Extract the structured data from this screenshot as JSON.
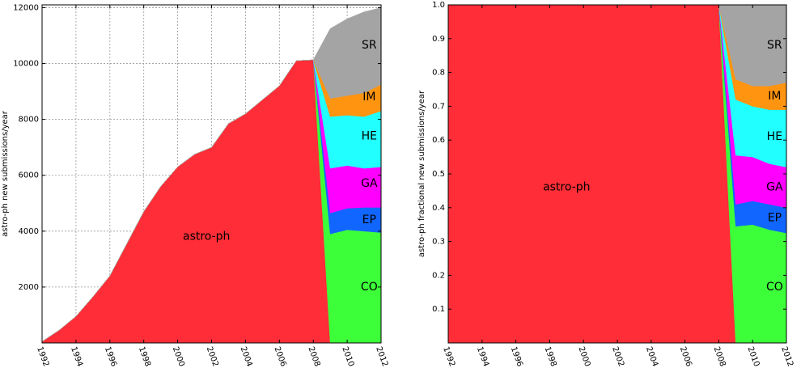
{
  "chart_data": [
    {
      "type": "area",
      "ylabel": "astro-ph new submissions/year",
      "xlim": [
        1992,
        2012
      ],
      "ylim": [
        0,
        12100
      ],
      "grid": true,
      "x_ticks": [
        "1992",
        "1994",
        "1996",
        "1998",
        "2000",
        "2002",
        "2004",
        "2006",
        "2008",
        "2010",
        "2012"
      ],
      "y_ticks": [
        {
          "value": 2000,
          "label": "2000"
        },
        {
          "value": 4000,
          "label": "4000"
        },
        {
          "value": 6000,
          "label": "6000"
        },
        {
          "value": 8000,
          "label": "8000"
        },
        {
          "value": 10000,
          "label": "10000"
        },
        {
          "value": 12000,
          "label": "12000"
        }
      ],
      "x": [
        1992,
        1993,
        1994,
        1995,
        1996,
        1997,
        1998,
        1999,
        2000,
        2001,
        2002,
        2003,
        2004,
        2005,
        2006,
        2007,
        2008,
        2009,
        2010,
        2011,
        2012
      ],
      "series": [
        {
          "name": "astro-ph",
          "color": "#ff2d37",
          "label_pos": [
            2001.7,
            3800
          ],
          "values": [
            50,
            450,
            950,
            1650,
            2400,
            3550,
            4700,
            5600,
            6300,
            6750,
            7000,
            7850,
            8200,
            8700,
            9200,
            10100,
            10130,
            0,
            0,
            0,
            0
          ]
        },
        {
          "name": "CO",
          "color": "#3cff3a",
          "label_pos": [
            2011.3,
            2000
          ],
          "values": [
            0,
            0,
            0,
            0,
            0,
            0,
            0,
            0,
            0,
            0,
            0,
            0,
            0,
            0,
            0,
            0,
            0,
            3900,
            4050,
            4000,
            3950
          ]
        },
        {
          "name": "EP",
          "color": "#1166ff",
          "label_pos": [
            2011.3,
            4400
          ],
          "values": [
            0,
            0,
            0,
            0,
            0,
            0,
            0,
            0,
            0,
            0,
            0,
            0,
            0,
            0,
            0,
            0,
            0,
            750,
            770,
            850,
            900
          ]
        },
        {
          "name": "GA",
          "color": "#ff00ff",
          "label_pos": [
            2011.3,
            5700
          ],
          "values": [
            0,
            0,
            0,
            0,
            0,
            0,
            0,
            0,
            0,
            0,
            0,
            0,
            0,
            0,
            0,
            0,
            0,
            1600,
            1530,
            1400,
            1450
          ]
        },
        {
          "name": "HE",
          "color": "#22ffff",
          "label_pos": [
            2011.3,
            7400
          ],
          "values": [
            0,
            0,
            0,
            0,
            0,
            0,
            0,
            0,
            0,
            0,
            0,
            0,
            0,
            0,
            0,
            0,
            0,
            1850,
            1800,
            1850,
            2000
          ]
        },
        {
          "name": "IM",
          "color": "#ff9410",
          "label_pos": [
            2011.3,
            8800
          ],
          "values": [
            0,
            0,
            0,
            0,
            0,
            0,
            0,
            0,
            0,
            0,
            0,
            0,
            0,
            0,
            0,
            0,
            0,
            650,
            700,
            850,
            950
          ]
        },
        {
          "name": "SR",
          "color": "#a4a4a4",
          "label_pos": [
            2011.3,
            10650
          ],
          "values": [
            0,
            0,
            0,
            0,
            0,
            0,
            0,
            0,
            0,
            0,
            0,
            0,
            0,
            0,
            0,
            0,
            0,
            2500,
            2750,
            2900,
            2750
          ]
        }
      ]
    },
    {
      "type": "area",
      "ylabel": "astro-ph fractional new submissions/year",
      "xlim": [
        1992,
        2012
      ],
      "ylim": [
        0,
        1.0
      ],
      "grid": false,
      "x_ticks": [
        "1992",
        "1994",
        "1996",
        "1998",
        "2000",
        "2002",
        "2004",
        "2006",
        "2008",
        "2010",
        "2012"
      ],
      "y_ticks": [
        {
          "value": 0.1,
          "label": "0.1"
        },
        {
          "value": 0.2,
          "label": "0.2"
        },
        {
          "value": 0.3,
          "label": "0.3"
        },
        {
          "value": 0.4,
          "label": "0.4"
        },
        {
          "value": 0.5,
          "label": "0.5"
        },
        {
          "value": 0.6,
          "label": "0.6"
        },
        {
          "value": 0.7,
          "label": "0.7"
        },
        {
          "value": 0.8,
          "label": "0.8"
        },
        {
          "value": 0.9,
          "label": "0.9"
        },
        {
          "value": 1.0,
          "label": "1.0"
        }
      ],
      "x": [
        1992,
        1993,
        1994,
        1995,
        1996,
        1997,
        1998,
        1999,
        2000,
        2001,
        2002,
        2003,
        2004,
        2005,
        2006,
        2007,
        2008,
        2009,
        2010,
        2011,
        2012
      ],
      "series": [
        {
          "name": "astro-ph",
          "color": "#ff2d37",
          "label_pos": [
            1999.0,
            0.46
          ],
          "values": [
            1,
            1,
            1,
            1,
            1,
            1,
            1,
            1,
            1,
            1,
            1,
            1,
            1,
            1,
            1,
            1,
            1,
            0,
            0,
            0,
            0
          ]
        },
        {
          "name": "CO",
          "color": "#3cff3a",
          "label_pos": [
            2011.3,
            0.165
          ],
          "values": [
            0,
            0,
            0,
            0,
            0,
            0,
            0,
            0,
            0,
            0,
            0,
            0,
            0,
            0,
            0,
            0,
            0,
            0.345,
            0.35,
            0.335,
            0.325
          ]
        },
        {
          "name": "EP",
          "color": "#1166ff",
          "label_pos": [
            2011.3,
            0.37
          ],
          "values": [
            0,
            0,
            0,
            0,
            0,
            0,
            0,
            0,
            0,
            0,
            0,
            0,
            0,
            0,
            0,
            0,
            0,
            0.065,
            0.07,
            0.075,
            0.075
          ]
        },
        {
          "name": "GA",
          "color": "#ff00ff",
          "label_pos": [
            2011.3,
            0.46
          ],
          "values": [
            0,
            0,
            0,
            0,
            0,
            0,
            0,
            0,
            0,
            0,
            0,
            0,
            0,
            0,
            0,
            0,
            0,
            0.145,
            0.13,
            0.12,
            0.12
          ]
        },
        {
          "name": "HE",
          "color": "#22ffff",
          "label_pos": [
            2011.3,
            0.61
          ],
          "values": [
            0,
            0,
            0,
            0,
            0,
            0,
            0,
            0,
            0,
            0,
            0,
            0,
            0,
            0,
            0,
            0,
            0,
            0.165,
            0.15,
            0.16,
            0.17
          ]
        },
        {
          "name": "IM",
          "color": "#ff9410",
          "label_pos": [
            2011.3,
            0.73
          ],
          "values": [
            0,
            0,
            0,
            0,
            0,
            0,
            0,
            0,
            0,
            0,
            0,
            0,
            0,
            0,
            0,
            0,
            0,
            0.06,
            0.06,
            0.07,
            0.08
          ]
        },
        {
          "name": "SR",
          "color": "#a4a4a4",
          "label_pos": [
            2011.3,
            0.88
          ],
          "values": [
            0,
            0,
            0,
            0,
            0,
            0,
            0,
            0,
            0,
            0,
            0,
            0,
            0,
            0,
            0,
            0,
            0,
            0.22,
            0.24,
            0.24,
            0.23
          ]
        }
      ]
    }
  ]
}
